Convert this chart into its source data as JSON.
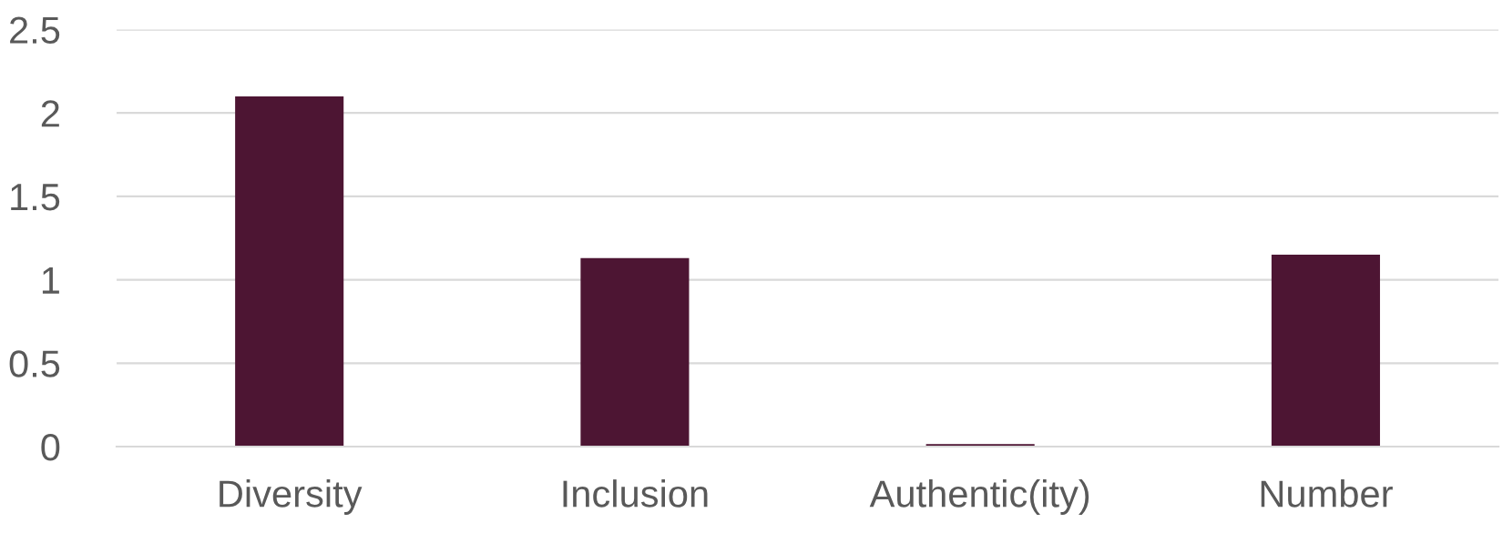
{
  "chart_data": {
    "type": "bar",
    "categories": [
      "Diversity",
      "Inclusion",
      "Authentic(ity)",
      "Number"
    ],
    "values": [
      2.1,
      1.13,
      0.015,
      1.15
    ],
    "color": "#4d1533",
    "ylim": [
      0,
      2.5
    ],
    "yticks": [
      0,
      0.5,
      1,
      1.5,
      2,
      2.5
    ],
    "grid": "y"
  }
}
